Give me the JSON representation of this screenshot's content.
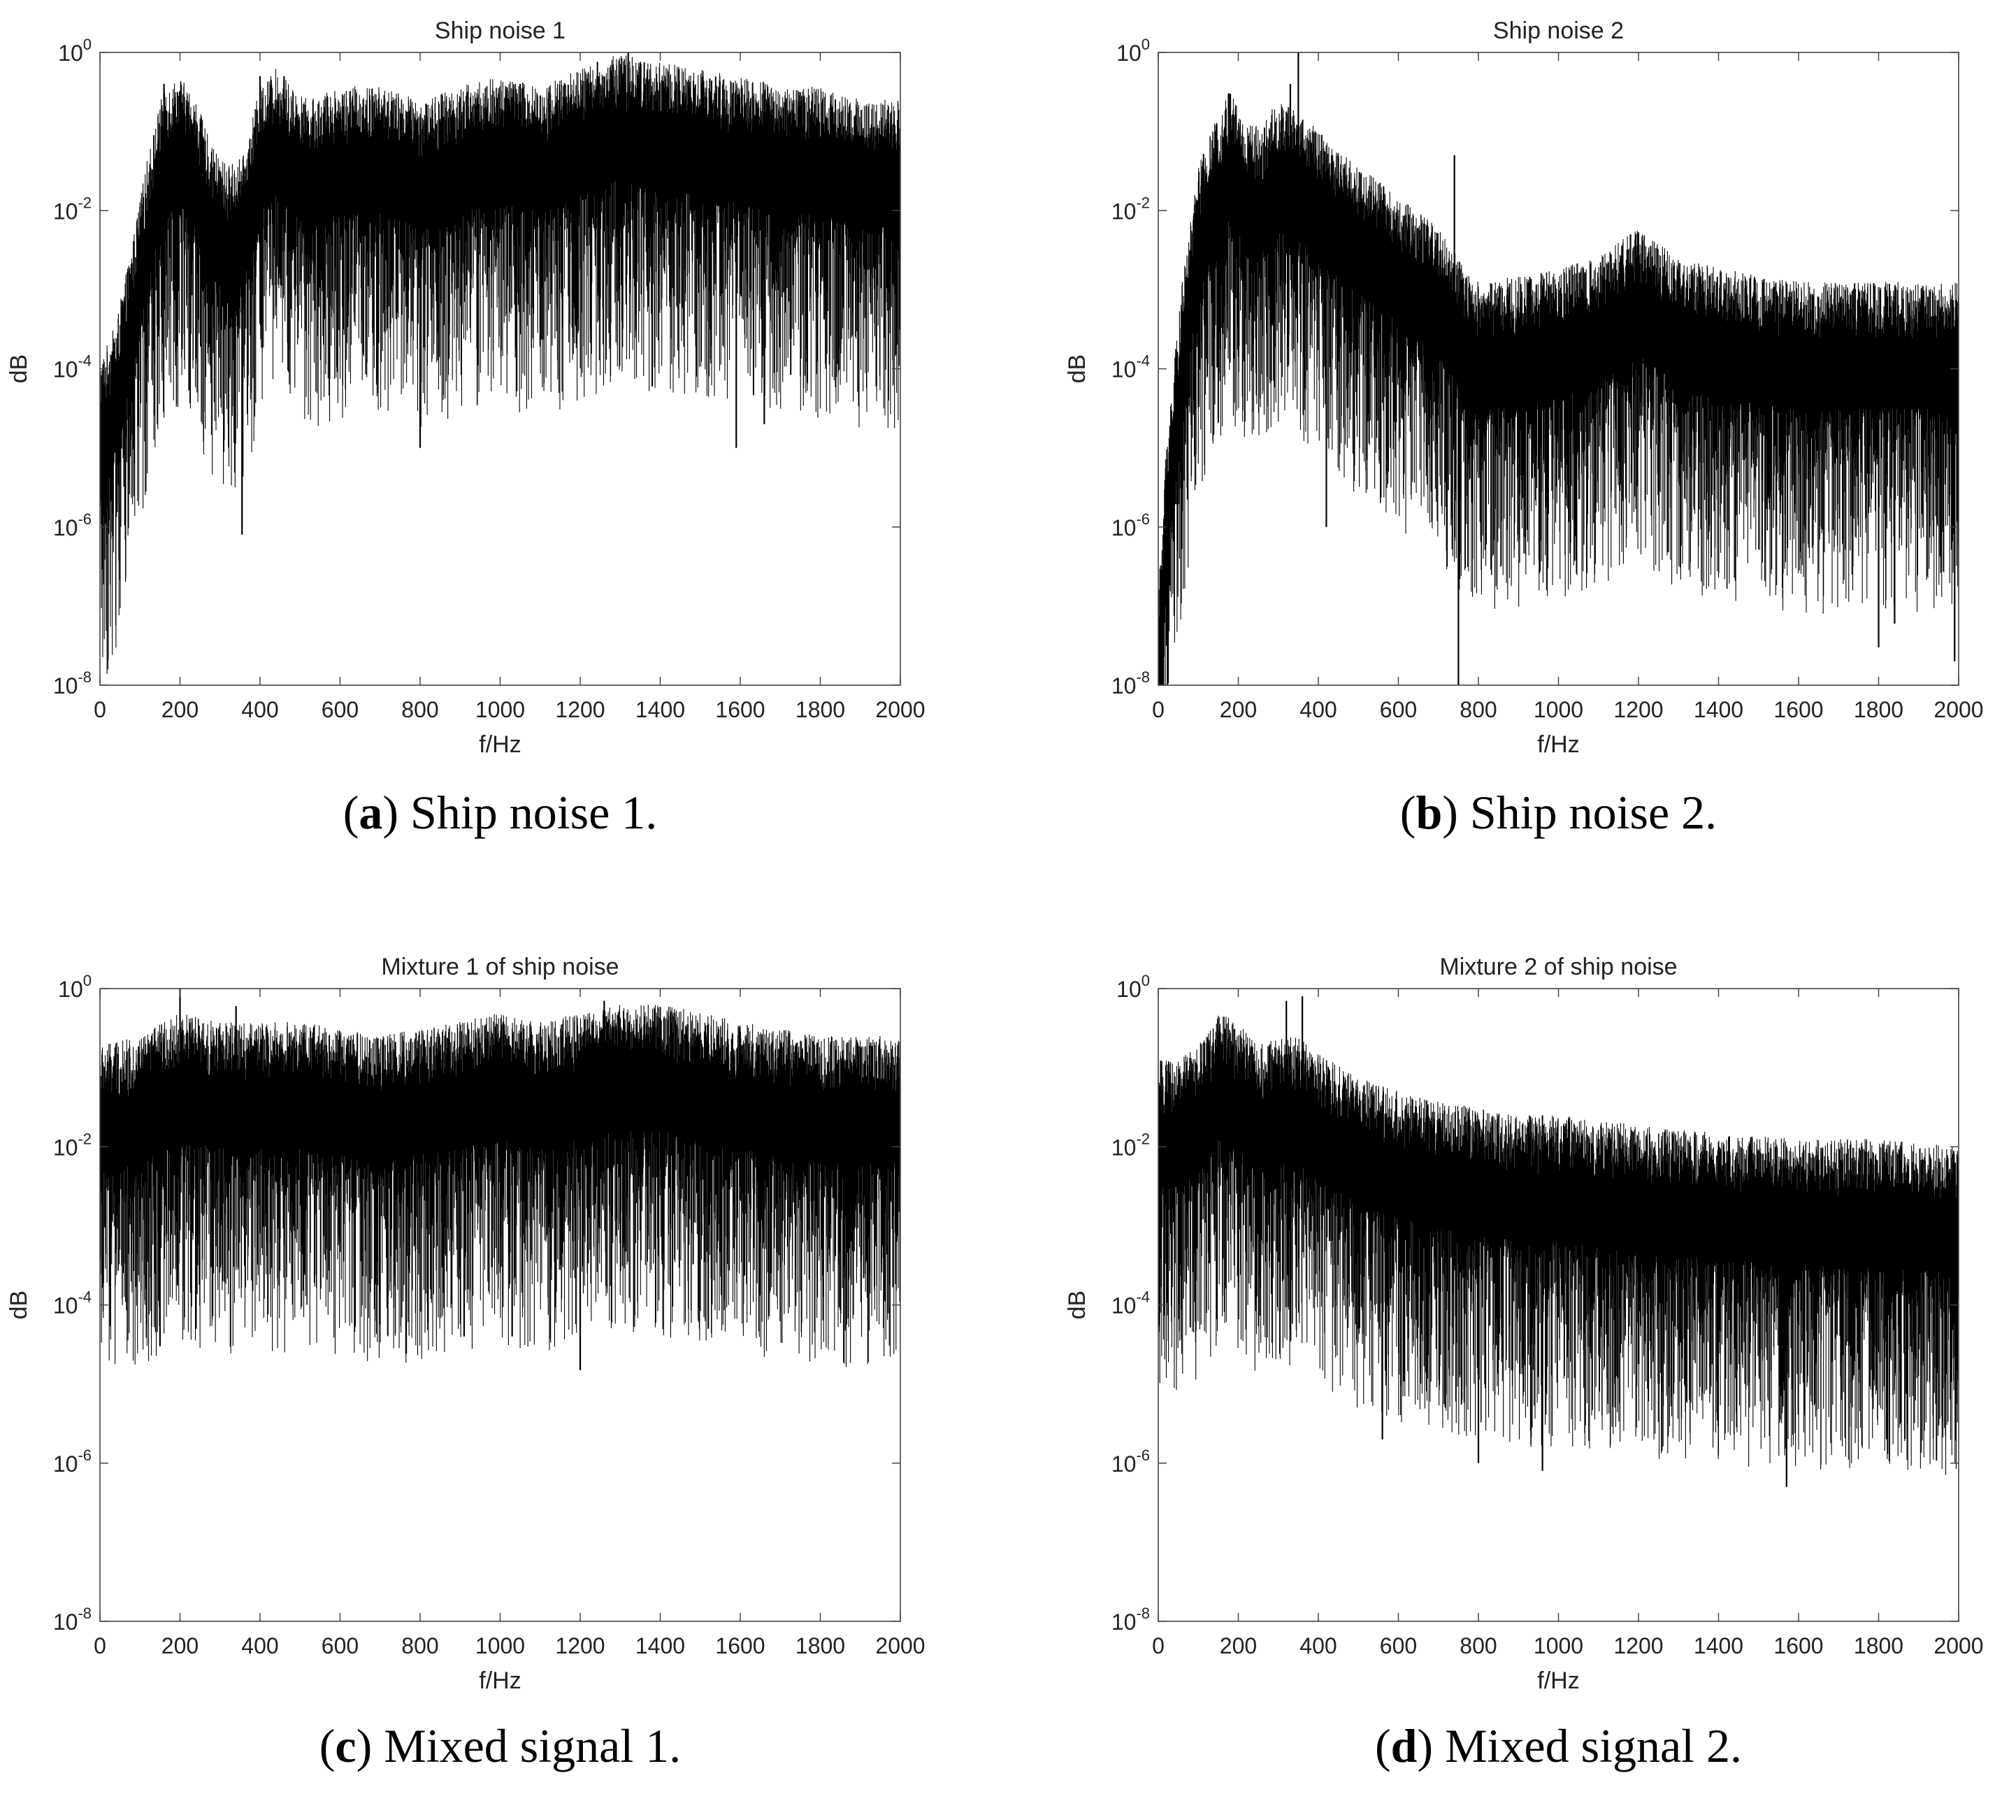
{
  "chart_data": [
    {
      "type": "line",
      "title": "Ship noise 1",
      "xlabel": "f/Hz",
      "ylabel": "dB",
      "xlim": [
        0,
        2000
      ],
      "ylim": [
        1e-08,
        1
      ],
      "yscale": "log",
      "grid": false,
      "x_ticks": [
        "0",
        "200",
        "400",
        "600",
        "800",
        "1000",
        "1200",
        "1400",
        "1600",
        "1800",
        "2000"
      ],
      "y_ticks": [
        {
          "base": "10",
          "exp": "-8"
        },
        {
          "base": "10",
          "exp": "-6"
        },
        {
          "base": "10",
          "exp": "-4"
        },
        {
          "base": "10",
          "exp": "-2"
        },
        {
          "base": "10",
          "exp": "0"
        }
      ],
      "caption_letter": "a",
      "caption_text": "Ship noise 1.",
      "series_color": "#000000",
      "envelope": {
        "freq": [
          0,
          40,
          80,
          120,
          160,
          200,
          240,
          280,
          320,
          360,
          400,
          440,
          480,
          520,
          600,
          700,
          800,
          900,
          1000,
          1100,
          1200,
          1300,
          1400,
          1500,
          1600,
          1700,
          1800,
          1900,
          2000
        ],
        "typical": [
          1e-05,
          3e-05,
          0.0003,
          0.004,
          0.03,
          0.04,
          0.02,
          0.005,
          0.003,
          0.004,
          0.03,
          0.05,
          0.03,
          0.02,
          0.03,
          0.03,
          0.02,
          0.03,
          0.04,
          0.03,
          0.05,
          0.08,
          0.06,
          0.05,
          0.04,
          0.03,
          0.03,
          0.02,
          0.02
        ],
        "spikes": [
          [
            160,
            0.4
          ],
          [
            200,
            0.3
          ],
          [
            355,
            8e-07
          ],
          [
            400,
            0.5
          ],
          [
            460,
            0.5
          ],
          [
            800,
            1e-05
          ],
          [
            1050,
            0.4
          ],
          [
            1260,
            0.5
          ],
          [
            1320,
            1.0
          ],
          [
            1380,
            6e-05
          ],
          [
            1590,
            1e-05
          ],
          [
            1660,
            2e-05
          ],
          [
            1940,
            6e-05
          ]
        ]
      }
    },
    {
      "type": "line",
      "title": "Ship noise 2",
      "xlabel": "f/Hz",
      "ylabel": "dB",
      "xlim": [
        0,
        2000
      ],
      "ylim": [
        1e-08,
        1
      ],
      "yscale": "log",
      "grid": false,
      "x_ticks": [
        "0",
        "200",
        "400",
        "600",
        "800",
        "1000",
        "1200",
        "1400",
        "1600",
        "1800",
        "2000"
      ],
      "y_ticks": [
        {
          "base": "10",
          "exp": "-8"
        },
        {
          "base": "10",
          "exp": "-6"
        },
        {
          "base": "10",
          "exp": "-4"
        },
        {
          "base": "10",
          "exp": "-2"
        },
        {
          "base": "10",
          "exp": "0"
        }
      ],
      "caption_letter": "b",
      "caption_text": "Ship noise 2.",
      "series_color": "#000000",
      "envelope": {
        "freq": [
          0,
          20,
          60,
          100,
          140,
          180,
          220,
          260,
          300,
          350,
          400,
          450,
          500,
          550,
          600,
          650,
          700,
          750,
          800,
          900,
          1000,
          1100,
          1200,
          1300,
          1400,
          1500,
          1600,
          1700,
          1800,
          1900,
          2000
        ],
        "typical": [
          1e-08,
          1e-06,
          0.0001,
          0.003,
          0.01,
          0.03,
          0.01,
          0.01,
          0.02,
          0.015,
          0.008,
          0.005,
          0.003,
          0.002,
          0.0012,
          0.0008,
          0.0005,
          0.0002,
          0.0001,
          0.00012,
          0.00015,
          0.0002,
          0.0005,
          0.0002,
          0.00015,
          0.00012,
          0.0001,
          0.0001,
          0.0001,
          0.0001,
          0.0001
        ],
        "spikes": [
          [
            180,
            0.3
          ],
          [
            330,
            0.4
          ],
          [
            350,
            1.0
          ],
          [
            420,
            1e-06
          ],
          [
            740,
            0.05
          ],
          [
            750,
            1e-08
          ],
          [
            1180,
            0.005
          ],
          [
            1800,
            3e-08
          ],
          [
            1840,
            6e-08
          ],
          [
            1990,
            2e-08
          ]
        ]
      }
    },
    {
      "type": "line",
      "title": "Mixture 1 of ship noise",
      "xlabel": "f/Hz",
      "ylabel": "dB",
      "xlim": [
        0,
        2000
      ],
      "ylim": [
        1e-08,
        1
      ],
      "yscale": "log",
      "grid": false,
      "x_ticks": [
        "0",
        "200",
        "400",
        "600",
        "800",
        "1000",
        "1200",
        "1400",
        "1600",
        "1800",
        "2000"
      ],
      "y_ticks": [
        {
          "base": "10",
          "exp": "-8"
        },
        {
          "base": "10",
          "exp": "-6"
        },
        {
          "base": "10",
          "exp": "-4"
        },
        {
          "base": "10",
          "exp": "-2"
        },
        {
          "base": "10",
          "exp": "0"
        }
      ],
      "caption_letter": "c",
      "caption_text": "Mixed signal 1.",
      "series_color": "#000000",
      "envelope": {
        "freq": [
          0,
          100,
          200,
          300,
          400,
          500,
          600,
          700,
          800,
          900,
          1000,
          1100,
          1200,
          1300,
          1400,
          1500,
          1600,
          1700,
          1800,
          1900,
          2000
        ],
        "typical": [
          0.015,
          0.02,
          0.04,
          0.03,
          0.03,
          0.03,
          0.025,
          0.02,
          0.025,
          0.03,
          0.04,
          0.03,
          0.04,
          0.05,
          0.05,
          0.04,
          0.03,
          0.025,
          0.02,
          0.02,
          0.02
        ],
        "spikes": [
          [
            150,
            3e-05
          ],
          [
            200,
            1.0
          ],
          [
            240,
            5e-05
          ],
          [
            340,
            0.6
          ],
          [
            910,
            4e-05
          ],
          [
            1030,
            4e-05
          ],
          [
            1200,
            1.5e-05
          ],
          [
            1260,
            0.7
          ],
          [
            1520,
            5e-05
          ]
        ]
      }
    },
    {
      "type": "line",
      "title": "Mixture 2 of ship noise",
      "xlabel": "f/Hz",
      "ylabel": "dB",
      "xlim": [
        0,
        2000
      ],
      "ylim": [
        1e-08,
        1
      ],
      "yscale": "log",
      "grid": false,
      "x_ticks": [
        "0",
        "200",
        "400",
        "600",
        "800",
        "1000",
        "1200",
        "1400",
        "1600",
        "1800",
        "2000"
      ],
      "y_ticks": [
        {
          "base": "10",
          "exp": "-8"
        },
        {
          "base": "10",
          "exp": "-6"
        },
        {
          "base": "10",
          "exp": "-4"
        },
        {
          "base": "10",
          "exp": "-2"
        },
        {
          "base": "10",
          "exp": "0"
        }
      ],
      "caption_letter": "d",
      "caption_text": "Mixed signal 2.",
      "series_color": "#000000",
      "envelope": {
        "freq": [
          0,
          50,
          100,
          150,
          200,
          250,
          300,
          350,
          400,
          500,
          600,
          700,
          800,
          900,
          1000,
          1200,
          1400,
          1600,
          1800,
          2000
        ],
        "typical": [
          0.01,
          0.01,
          0.015,
          0.04,
          0.03,
          0.015,
          0.02,
          0.02,
          0.012,
          0.006,
          0.004,
          0.003,
          0.0025,
          0.002,
          0.002,
          0.0015,
          0.0012,
          0.001,
          0.001,
          0.0008
        ],
        "spikes": [
          [
            320,
            0.7
          ],
          [
            360,
            0.8
          ],
          [
            560,
            2e-06
          ],
          [
            800,
            1e-06
          ],
          [
            960,
            8e-07
          ],
          [
            1570,
            5e-07
          ],
          [
            1820,
            2e-06
          ]
        ]
      }
    }
  ]
}
